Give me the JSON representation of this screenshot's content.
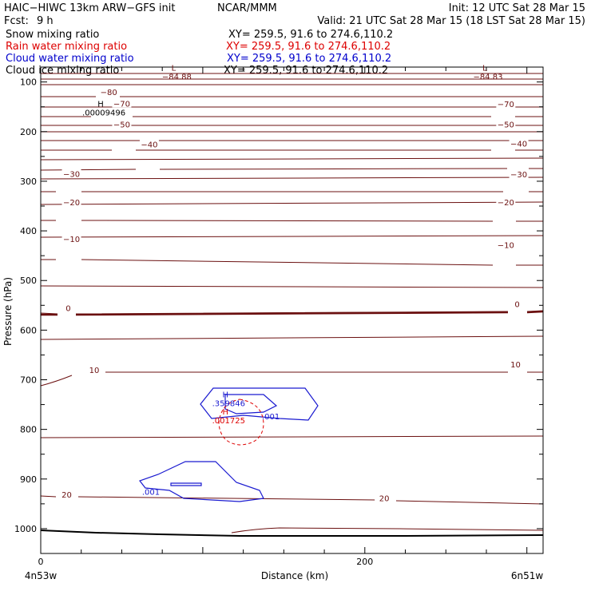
{
  "header": {
    "title": "HAIC−HIWC 13km ARW−GFS init",
    "org": "NCAR/MMM",
    "init": "Init: 12 UTC Sat 28 Mar 15",
    "fcst_label": "Fcst:",
    "fcst_value": "9 h",
    "valid": "Valid: 21 UTC Sat 28 Mar 15 (18 LST Sat 28 Mar 15)"
  },
  "fields": [
    {
      "name": "Snow mixing ratio",
      "xy": "XY= 259.5, 91.6 to 274.6,110.2",
      "color": "#000000"
    },
    {
      "name": "Rain water mixing ratio",
      "xy": "XY= 259.5, 91.6 to 274.6,110.2",
      "color": "#dd0000"
    },
    {
      "name": "Cloud water mixing ratio",
      "xy": "XY= 259.5, 91.6 to 274.6,110.2",
      "color": "#0000cc"
    },
    {
      "name": "Cloud ice mixing ratio",
      "xy": "XY= 259.5, 91.6 to 274.6,110.2",
      "color": "#000000"
    }
  ],
  "colors": {
    "temperature": "#6b1010",
    "rain": "#dd0000",
    "cloud_water": "#1a1ad0",
    "terrain": "#000000"
  },
  "chart_data": {
    "type": "cross-section",
    "xlabel": "Distance (km)",
    "ylabel": "Pressure (hPa)",
    "xlim": [
      0,
      310
    ],
    "ylim": [
      1050,
      70
    ],
    "x_ticks": [
      0,
      200
    ],
    "y_ticks": [
      100,
      200,
      300,
      400,
      500,
      600,
      700,
      800,
      900,
      1000
    ],
    "left_endpoint": "4n53w",
    "right_endpoint": "6n51w",
    "temperature_labels": [
      {
        "text": "−80",
        "x": 42,
        "p": 120
      },
      {
        "text": "−70",
        "x": 50,
        "p": 143
      },
      {
        "text": "−70",
        "x": 287,
        "p": 144
      },
      {
        "text": "−50",
        "x": 50,
        "p": 185
      },
      {
        "text": "−50",
        "x": 287,
        "p": 185
      },
      {
        "text": "−40",
        "x": 67,
        "p": 225
      },
      {
        "text": "−40",
        "x": 295,
        "p": 224
      },
      {
        "text": "−30",
        "x": 19,
        "p": 285
      },
      {
        "text": "−30",
        "x": 295,
        "p": 286
      },
      {
        "text": "−20",
        "x": 19,
        "p": 342
      },
      {
        "text": "−20",
        "x": 287,
        "p": 342
      },
      {
        "text": "−10",
        "x": 19,
        "p": 416
      },
      {
        "text": "−10",
        "x": 287,
        "p": 428
      },
      {
        "text": "0",
        "x": 17,
        "p": 555
      },
      {
        "text": "0",
        "x": 294,
        "p": 547
      },
      {
        "text": "10",
        "x": 33,
        "p": 680
      },
      {
        "text": "10",
        "x": 293,
        "p": 669
      },
      {
        "text": "20",
        "x": 16,
        "p": 931
      },
      {
        "text": "20",
        "x": 212,
        "p": 938
      }
    ],
    "extrema": [
      {
        "kind": "L",
        "value": "−84.88",
        "x": 82,
        "p": 77,
        "color": "#6b1010"
      },
      {
        "kind": "L",
        "value": "−84.83",
        "x": 274,
        "p": 77,
        "color": "#6b1010"
      },
      {
        "kind": "H",
        "value": ".00009496",
        "x": 37,
        "p": 150,
        "color": "#000000"
      },
      {
        "kind": "H",
        "value": ".359846",
        "x": 114,
        "p": 735,
        "color": "#1a1ad0"
      },
      {
        "kind": "H",
        "value": ".001725",
        "x": 114,
        "p": 770,
        "color": "#dd0000"
      }
    ],
    "contour_labels": [
      {
        "text": ".001",
        "x": 142,
        "p": 773,
        "color": "#1a1ad0"
      },
      {
        "text": ".001",
        "x": 68,
        "p": 925,
        "color": "#1a1ad0"
      }
    ]
  }
}
